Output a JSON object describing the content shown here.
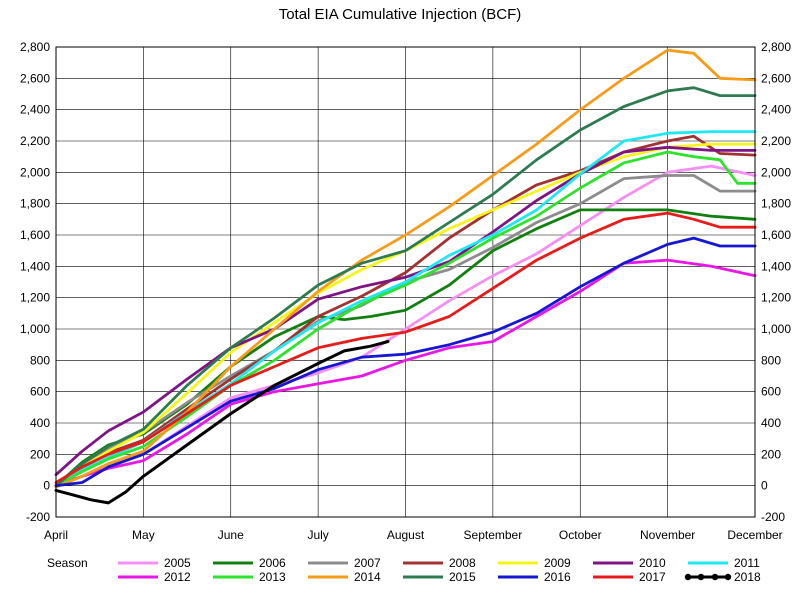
{
  "chart_data": {
    "type": "line",
    "title": "Total EIA Cumulative Injection (BCF)",
    "xlabel": "",
    "ylabel": "",
    "legend_title": "Season",
    "legend_position": "bottom",
    "grid": true,
    "ylim": [
      -200,
      2800
    ],
    "yticks": [
      -200,
      0,
      200,
      400,
      600,
      800,
      1000,
      1200,
      1400,
      1600,
      1800,
      2000,
      2200,
      2400,
      2600,
      2800
    ],
    "ytick_labels": [
      "-200",
      "0",
      "200",
      "400",
      "600",
      "800",
      "1,000",
      "1,200",
      "1,400",
      "1,600",
      "1,800",
      "2,000",
      "2,200",
      "2,400",
      "2,600",
      "2,800"
    ],
    "xticks": [
      "April",
      "May",
      "June",
      "July",
      "August",
      "September",
      "October",
      "November",
      "December"
    ],
    "series": [
      {
        "name": "2005",
        "color": "#f48ff4",
        "x": [
          0,
          0.3,
          0.6,
          1,
          1.5,
          2,
          2.5,
          3,
          3.5,
          4,
          4.5,
          5,
          5.5,
          6,
          6.5,
          7,
          7.5,
          8
        ],
        "y": [
          0,
          60,
          130,
          200,
          380,
          560,
          640,
          720,
          820,
          1000,
          1180,
          1340,
          1480,
          1660,
          1840,
          2000,
          2040,
          1980
        ]
      },
      {
        "name": "2006",
        "color": "#118011",
        "x": [
          0,
          0.3,
          0.6,
          1,
          1.5,
          2,
          2.5,
          3,
          3.3,
          3.6,
          4,
          4.5,
          5,
          5.5,
          6,
          6.5,
          7,
          7.5,
          8
        ],
        "y": [
          0,
          150,
          260,
          330,
          520,
          760,
          950,
          1080,
          1060,
          1080,
          1120,
          1280,
          1500,
          1640,
          1760,
          1760,
          1760,
          1720,
          1700
        ]
      },
      {
        "name": "2007",
        "color": "#8c8c8c",
        "x": [
          0,
          0.3,
          0.6,
          1,
          1.5,
          2,
          2.5,
          3,
          3.5,
          4,
          4.5,
          5,
          5.5,
          6,
          6.5,
          7,
          7.3,
          7.6,
          8
        ],
        "y": [
          0,
          130,
          230,
          340,
          530,
          700,
          860,
          1050,
          1150,
          1300,
          1380,
          1520,
          1680,
          1800,
          1960,
          1980,
          1980,
          1880,
          1880
        ]
      },
      {
        "name": "2008",
        "color": "#a03232",
        "x": [
          0,
          0.3,
          0.6,
          1,
          1.5,
          2,
          2.5,
          3,
          3.5,
          4,
          4.5,
          5,
          5.5,
          6,
          6.5,
          7,
          7.3,
          7.6,
          8
        ],
        "y": [
          0,
          110,
          210,
          290,
          490,
          680,
          860,
          1080,
          1210,
          1360,
          1580,
          1760,
          1920,
          2010,
          2130,
          2200,
          2230,
          2120,
          2110
        ]
      },
      {
        "name": "2009",
        "color": "#f5f51c",
        "x": [
          0,
          0.3,
          0.6,
          1,
          1.5,
          2,
          2.5,
          3,
          3.5,
          4,
          4.5,
          5,
          5.5,
          6,
          6.5,
          7,
          7.5,
          8
        ],
        "y": [
          0,
          120,
          220,
          340,
          590,
          850,
          1040,
          1230,
          1380,
          1500,
          1640,
          1760,
          1880,
          2000,
          2100,
          2160,
          2180,
          2180
        ]
      },
      {
        "name": "2010",
        "color": "#7f1484",
        "x": [
          0,
          0.3,
          0.6,
          1,
          1.5,
          2,
          2.5,
          3,
          3.5,
          4,
          4.5,
          5,
          5.5,
          6,
          6.5,
          7,
          7.5,
          8
        ],
        "y": [
          70,
          220,
          350,
          470,
          680,
          880,
          1000,
          1190,
          1270,
          1330,
          1430,
          1620,
          1820,
          1990,
          2130,
          2160,
          2140,
          2140
        ]
      },
      {
        "name": "2011",
        "color": "#1fe9f0",
        "x": [
          0,
          0.3,
          0.6,
          1,
          1.5,
          2,
          2.5,
          3,
          3.5,
          4,
          4.5,
          5,
          5.5,
          6,
          6.5,
          7,
          7.5,
          8
        ],
        "y": [
          0,
          100,
          180,
          280,
          470,
          650,
          860,
          1040,
          1180,
          1300,
          1470,
          1600,
          1760,
          1990,
          2200,
          2250,
          2260,
          2260
        ]
      },
      {
        "name": "2012",
        "color": "#e718e5",
        "x": [
          0,
          0.3,
          0.6,
          1,
          1.5,
          2,
          2.5,
          3,
          3.5,
          4,
          4.5,
          5,
          5.5,
          6,
          6.5,
          7,
          7.5,
          8
        ],
        "y": [
          0,
          60,
          110,
          160,
          330,
          520,
          600,
          650,
          700,
          800,
          880,
          920,
          1080,
          1240,
          1420,
          1440,
          1400,
          1340
        ]
      },
      {
        "name": "2013",
        "color": "#2ee22e",
        "x": [
          0,
          0.3,
          0.6,
          1,
          1.5,
          2,
          2.5,
          3,
          3.5,
          4,
          4.5,
          5,
          5.5,
          6,
          6.5,
          7,
          7.3,
          7.6,
          7.8,
          8
        ],
        "y": [
          0,
          90,
          170,
          250,
          440,
          640,
          800,
          1000,
          1160,
          1280,
          1420,
          1580,
          1720,
          1900,
          2060,
          2130,
          2100,
          2080,
          1930,
          1930
        ]
      },
      {
        "name": "2014",
        "color": "#f59c19",
        "x": [
          0,
          0.3,
          0.6,
          1,
          1.5,
          2,
          2.5,
          3,
          3.5,
          4,
          4.5,
          5,
          5.5,
          6,
          6.5,
          7,
          7.3,
          7.6,
          8
        ],
        "y": [
          -10,
          60,
          140,
          220,
          470,
          760,
          1000,
          1240,
          1440,
          1600,
          1780,
          1980,
          2180,
          2400,
          2600,
          2780,
          2760,
          2600,
          2590
        ]
      },
      {
        "name": "2015",
        "color": "#2e7b50",
        "x": [
          0,
          0.3,
          0.6,
          1,
          1.5,
          2,
          2.5,
          3,
          3.5,
          4,
          4.5,
          5,
          5.5,
          6,
          6.5,
          7,
          7.3,
          7.6,
          8
        ],
        "y": [
          0,
          140,
          250,
          360,
          640,
          880,
          1070,
          1280,
          1420,
          1500,
          1680,
          1860,
          2080,
          2270,
          2420,
          2520,
          2540,
          2490,
          2490
        ]
      },
      {
        "name": "2016",
        "color": "#1717d2",
        "x": [
          0,
          0.3,
          0.6,
          1,
          1.5,
          2,
          2.5,
          3,
          3.5,
          4,
          4.5,
          5,
          5.5,
          6,
          6.5,
          7,
          7.3,
          7.6,
          8
        ],
        "y": [
          0,
          20,
          120,
          200,
          370,
          540,
          620,
          740,
          820,
          840,
          900,
          980,
          1100,
          1270,
          1420,
          1540,
          1580,
          1530,
          1530
        ]
      },
      {
        "name": "2017",
        "color": "#e81b1b",
        "x": [
          0,
          0.3,
          0.6,
          1,
          1.5,
          2,
          2.5,
          3,
          3.5,
          4,
          4.5,
          5,
          5.5,
          6,
          6.5,
          7,
          7.3,
          7.6,
          8
        ],
        "y": [
          20,
          120,
          200,
          280,
          460,
          640,
          760,
          880,
          940,
          980,
          1080,
          1260,
          1440,
          1580,
          1700,
          1740,
          1700,
          1650,
          1650
        ]
      },
      {
        "name": "2018",
        "color": "#000000",
        "x": [
          0,
          0.2,
          0.4,
          0.6,
          0.8,
          1,
          1.5,
          2,
          2.5,
          3,
          3.3,
          3.6,
          3.8
        ],
        "y": [
          -30,
          -60,
          -90,
          -110,
          -40,
          60,
          260,
          460,
          640,
          780,
          860,
          890,
          920
        ]
      }
    ]
  }
}
